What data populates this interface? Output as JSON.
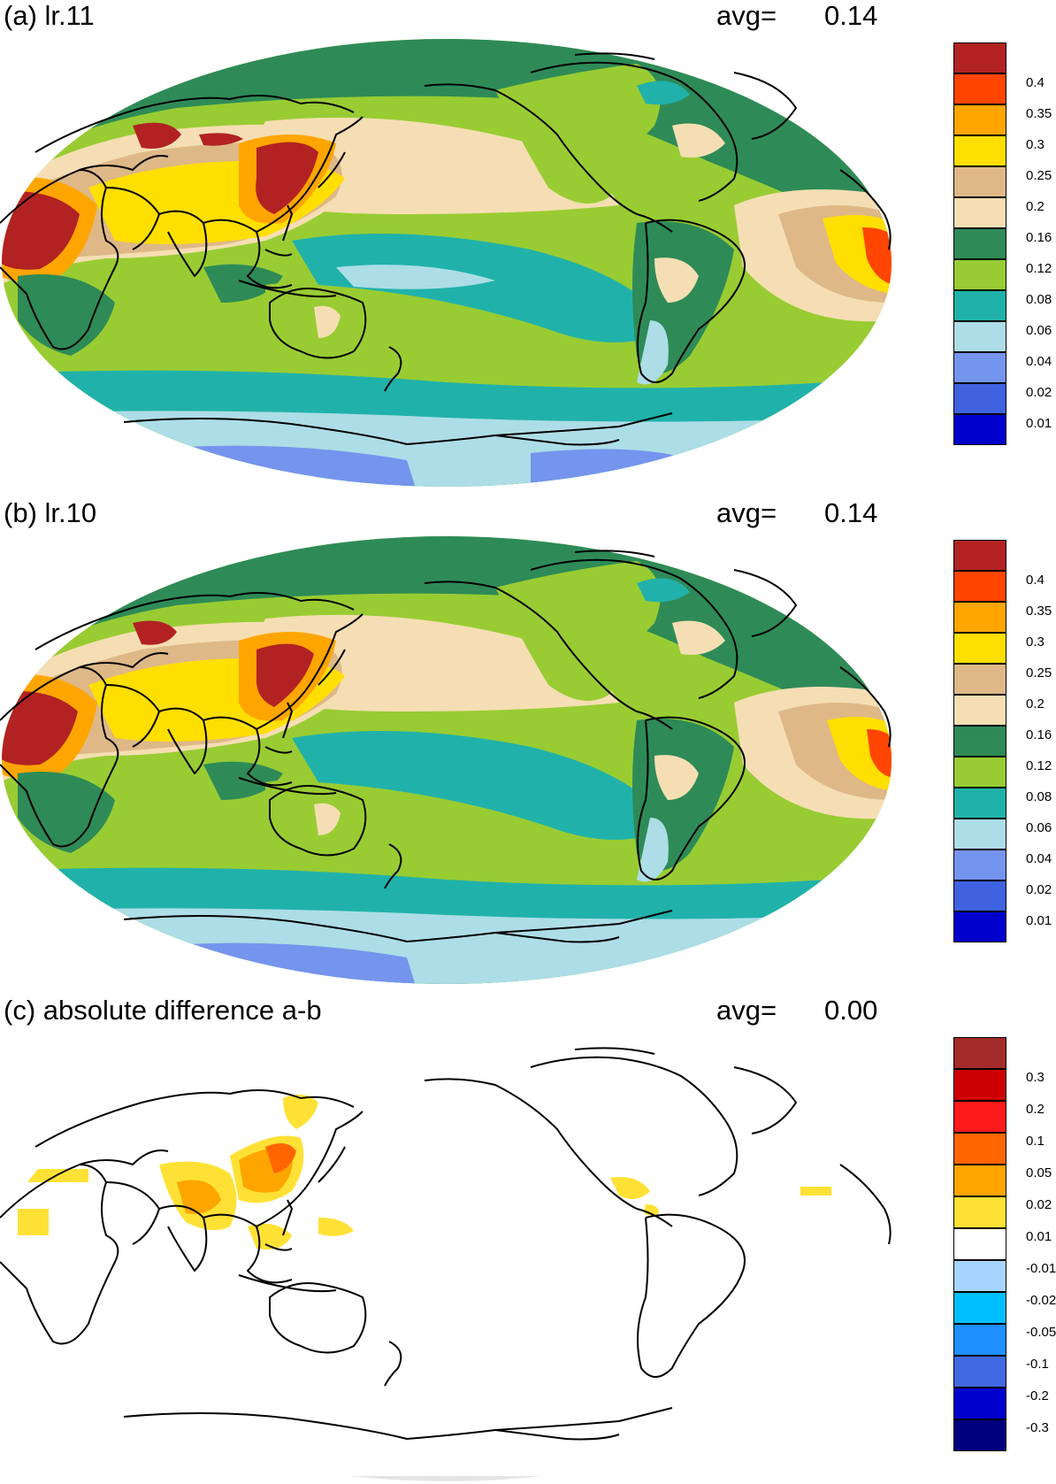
{
  "colors": {
    "coastline": "#000000",
    "panel_sequential": [
      "#0000cc",
      "#3e62e0",
      "#7594ee",
      "#addde6",
      "#20b2aa",
      "#99cc33",
      "#2e8b57",
      "#f5deb3",
      "#deb887",
      "#ffdf00",
      "#ffa500",
      "#ff4500",
      "#b22222"
    ],
    "panel_diverging": [
      "#00007f",
      "#0000cd",
      "#4169e1",
      "#1e90ff",
      "#00bfff",
      "#a5d5ff",
      "#ffffff",
      "#ffe135",
      "#ffa500",
      "#ff6600",
      "#ff1a1a",
      "#cc0000",
      "#a52a2a"
    ]
  },
  "panels": [
    {
      "id": "a",
      "title": "(a) lr.11",
      "avg_label": "avg=",
      "avg_value": "0.14",
      "colorbar": {
        "palette": "panel_sequential",
        "labels": [
          "",
          "0.01",
          "0.02",
          "0.04",
          "0.06",
          "0.08",
          "0.12",
          "0.16",
          "0.2",
          "0.25",
          "0.3",
          "0.35",
          "0.4",
          ""
        ]
      }
    },
    {
      "id": "b",
      "title": "(b) lr.10",
      "avg_label": "avg=",
      "avg_value": "0.14",
      "colorbar": {
        "palette": "panel_sequential",
        "labels": [
          "",
          "0.01",
          "0.02",
          "0.04",
          "0.06",
          "0.08",
          "0.12",
          "0.16",
          "0.2",
          "0.25",
          "0.3",
          "0.35",
          "0.4",
          ""
        ]
      }
    },
    {
      "id": "c",
      "title": "(c) absolute difference a-b",
      "avg_label": "avg=",
      "avg_value": "0.00",
      "colorbar": {
        "palette": "panel_diverging",
        "labels": [
          "",
          "-0.3",
          "-0.2",
          "-0.1",
          "-0.05",
          "-0.02",
          "-0.01",
          "0.01",
          "0.02",
          "0.05",
          "0.1",
          "0.2",
          "0.3",
          ""
        ]
      }
    }
  ]
}
